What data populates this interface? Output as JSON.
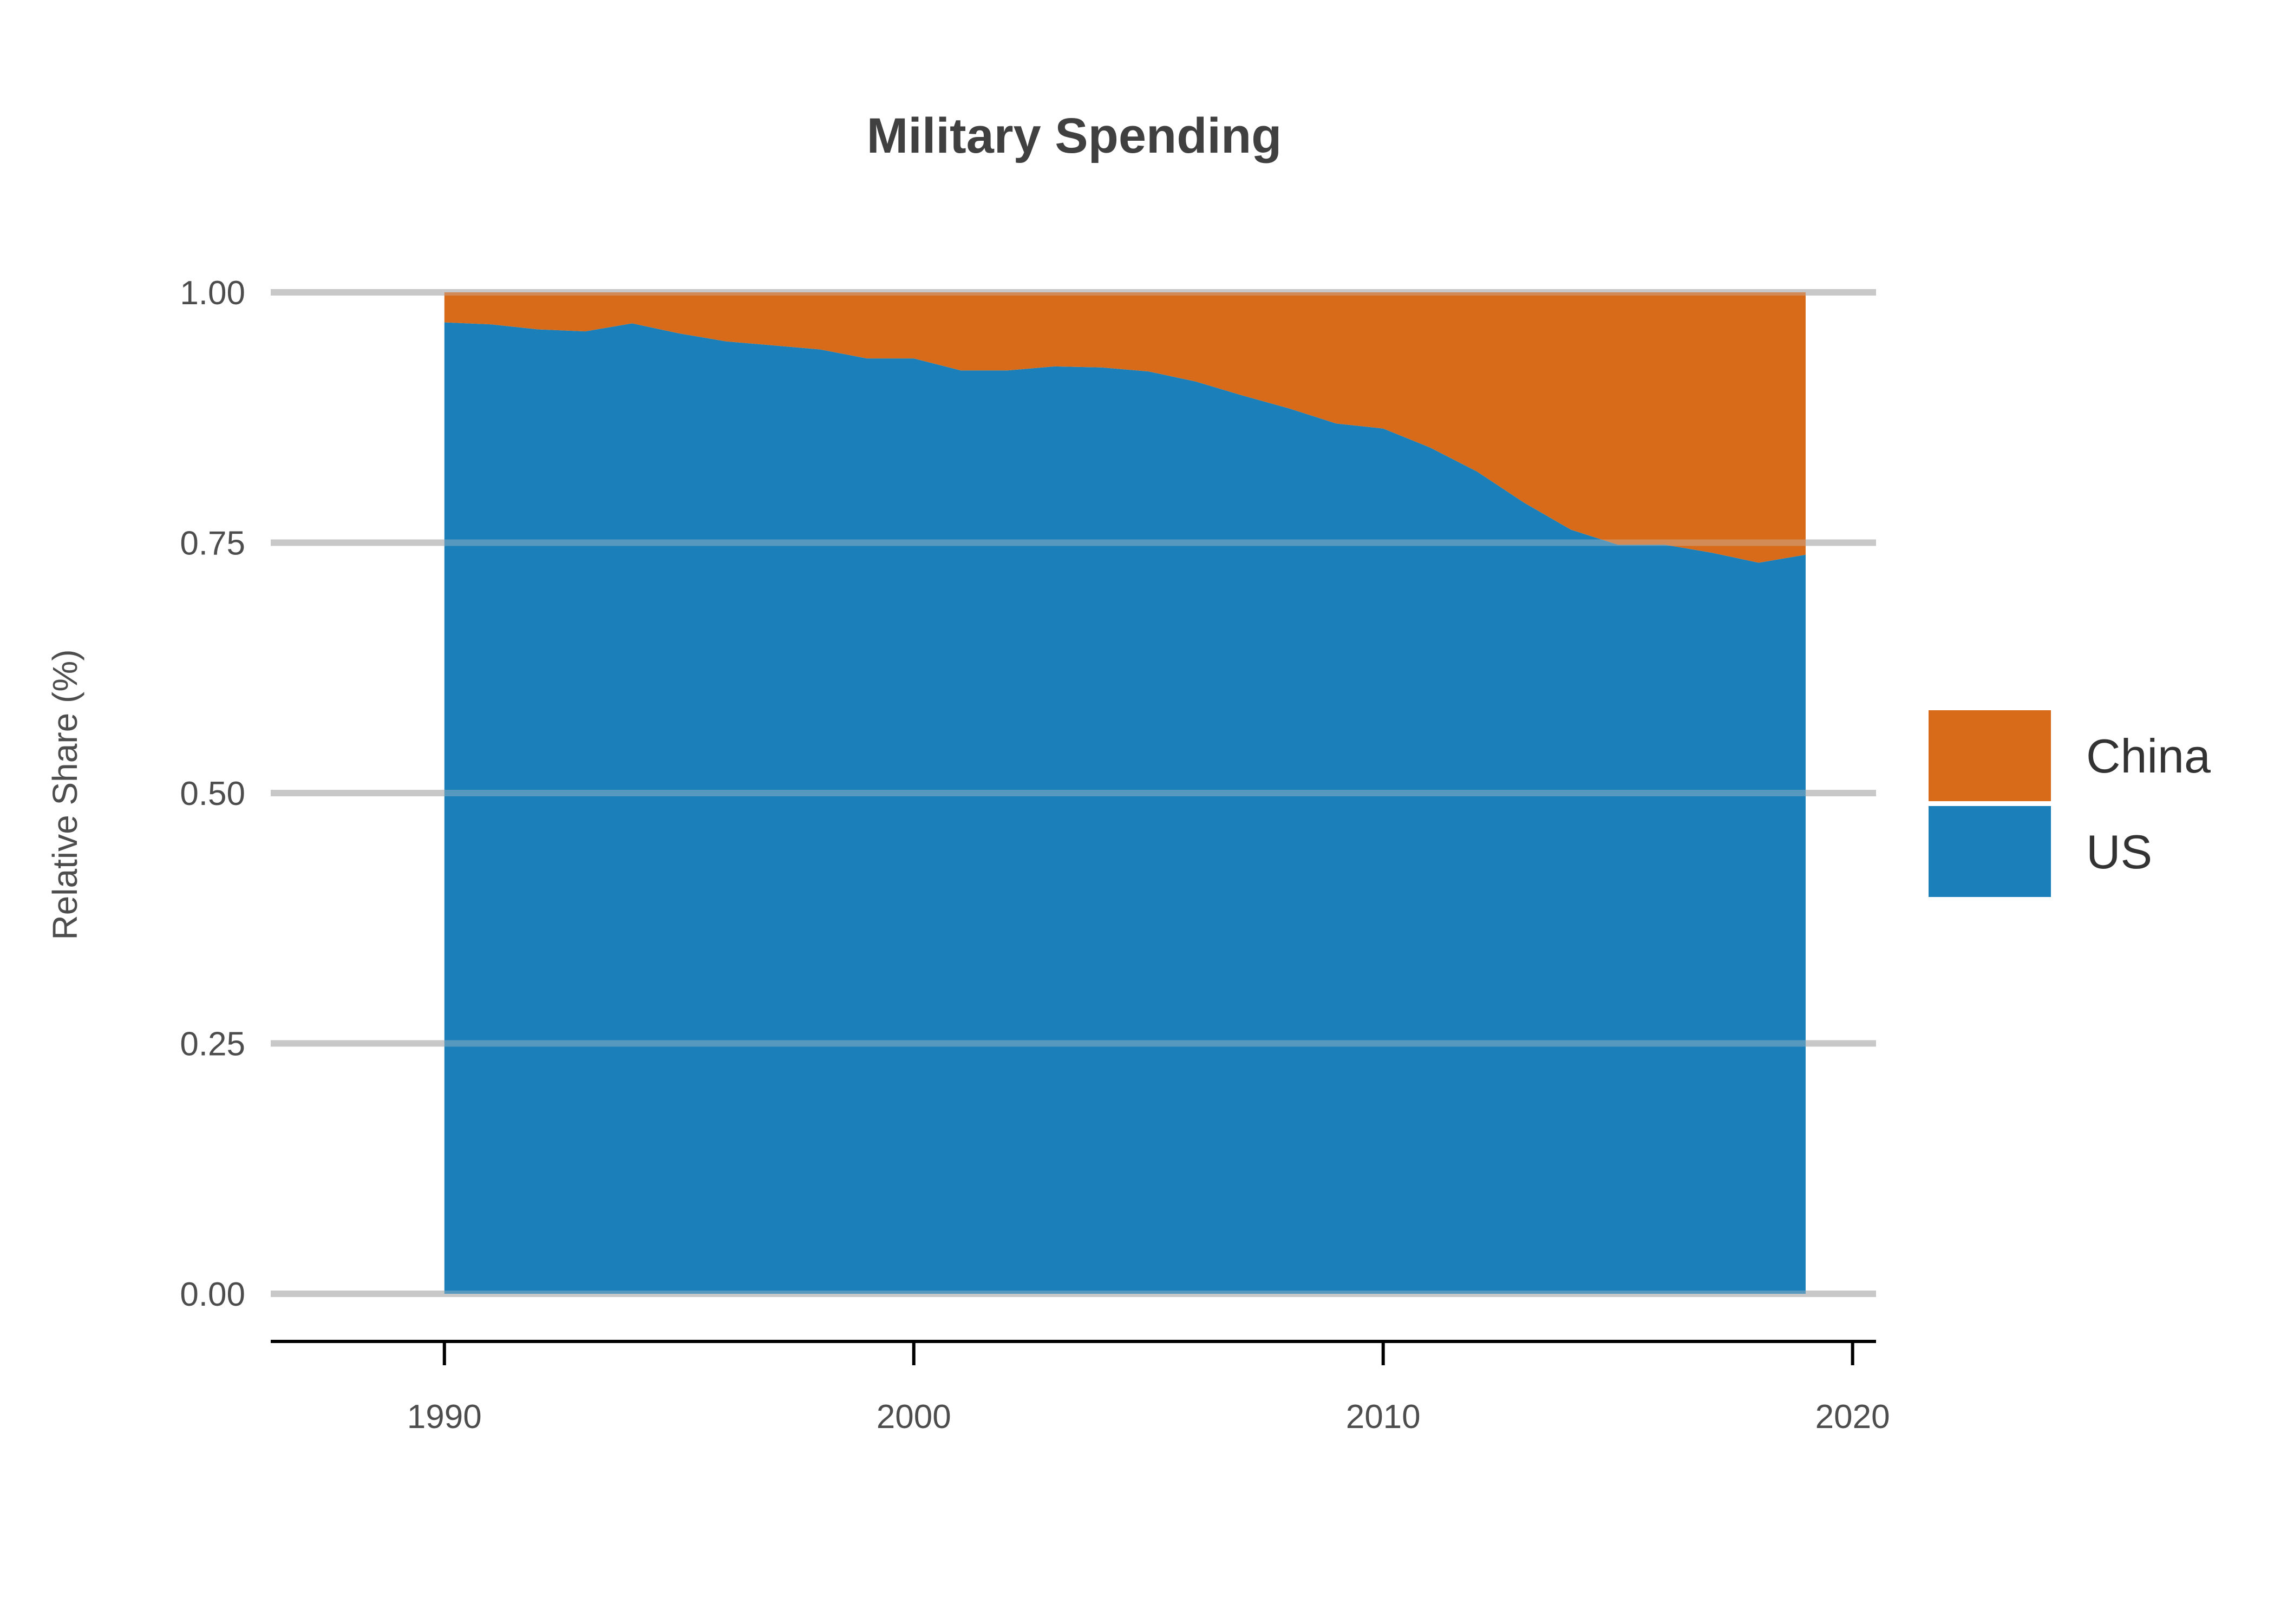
{
  "chart_data": {
    "type": "area",
    "stacked": "fill",
    "title": "Military Spending",
    "xlabel": "",
    "ylabel": "Relative Share (%)",
    "x": [
      1990,
      1991,
      1992,
      1993,
      1994,
      1995,
      1996,
      1997,
      1998,
      1999,
      2000,
      2001,
      2002,
      2003,
      2004,
      2005,
      2006,
      2007,
      2008,
      2009,
      2010,
      2011,
      2012,
      2013,
      2014,
      2015,
      2016,
      2017,
      2018,
      2019
    ],
    "series": [
      {
        "name": "US",
        "color": "#1b80b9",
        "values": [
          0.97,
          0.968,
          0.963,
          0.961,
          0.969,
          0.959,
          0.951,
          0.947,
          0.943,
          0.934,
          0.934,
          0.922,
          0.922,
          0.926,
          0.925,
          0.921,
          0.911,
          0.897,
          0.884,
          0.869,
          0.864,
          0.845,
          0.821,
          0.79,
          0.763,
          0.748,
          0.748,
          0.74,
          0.73,
          0.738
        ]
      },
      {
        "name": "China",
        "color": "#d86b1a",
        "values": [
          0.03,
          0.032,
          0.037,
          0.039,
          0.031,
          0.041,
          0.049,
          0.053,
          0.057,
          0.066,
          0.066,
          0.078,
          0.078,
          0.074,
          0.075,
          0.079,
          0.089,
          0.103,
          0.116,
          0.131,
          0.136,
          0.155,
          0.179,
          0.21,
          0.237,
          0.252,
          0.252,
          0.26,
          0.27,
          0.262
        ]
      }
    ],
    "xlim": [
      1986.3,
      2020.5
    ],
    "ylim": [
      0,
      1
    ],
    "x_ticks": [
      1990,
      2000,
      2010,
      2020
    ],
    "x_tick_labels": [
      "1990",
      "2000",
      "2010",
      "2020"
    ],
    "y_ticks": [
      0,
      0.25,
      0.5,
      0.75,
      1.0
    ],
    "y_tick_labels": [
      "0.00",
      "0.25",
      "0.50",
      "0.75",
      "1.00"
    ],
    "grid": "horizontal",
    "legend_position": "right",
    "legend": [
      {
        "label": "China",
        "color": "#d86b1a"
      },
      {
        "label": "US",
        "color": "#1b80b9"
      }
    ]
  }
}
